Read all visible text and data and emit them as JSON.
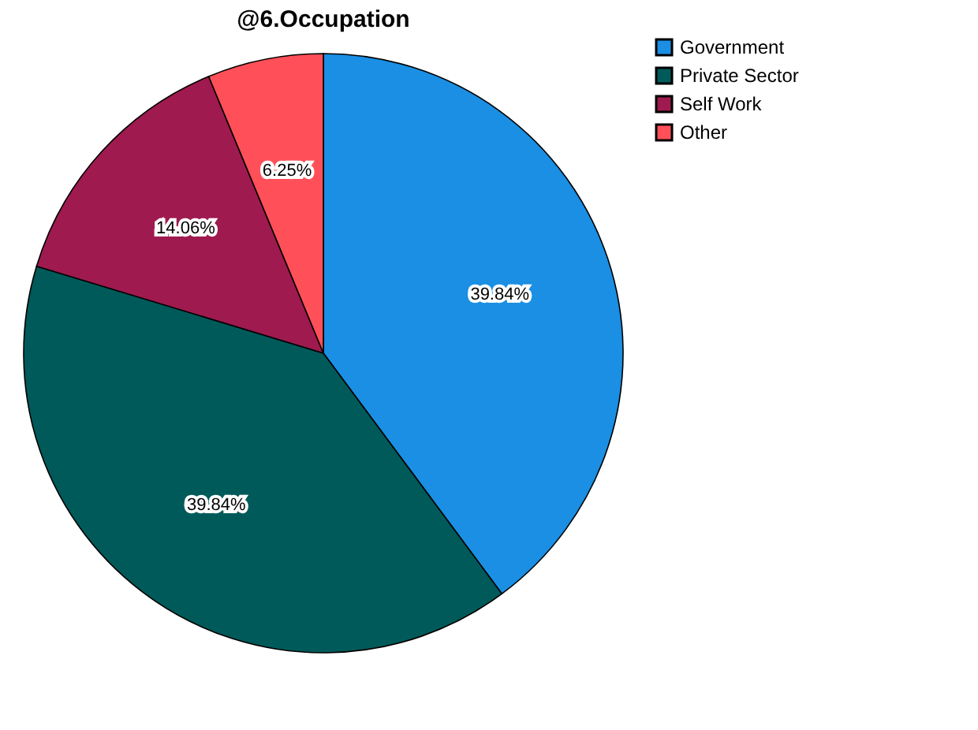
{
  "chart_data": {
    "type": "pie",
    "title": "@6.Occupation",
    "categories": [
      "Government",
      "Private Sector",
      "Self Work",
      "Other"
    ],
    "values": [
      39.84,
      39.84,
      14.06,
      6.25
    ],
    "colors": [
      "#1a8fe3",
      "#005a5a",
      "#9e1a4f",
      "#ff5059"
    ],
    "value_labels": [
      "39.84%",
      "39.84%",
      "14.06%",
      "6.25%"
    ],
    "legend": "top right"
  }
}
